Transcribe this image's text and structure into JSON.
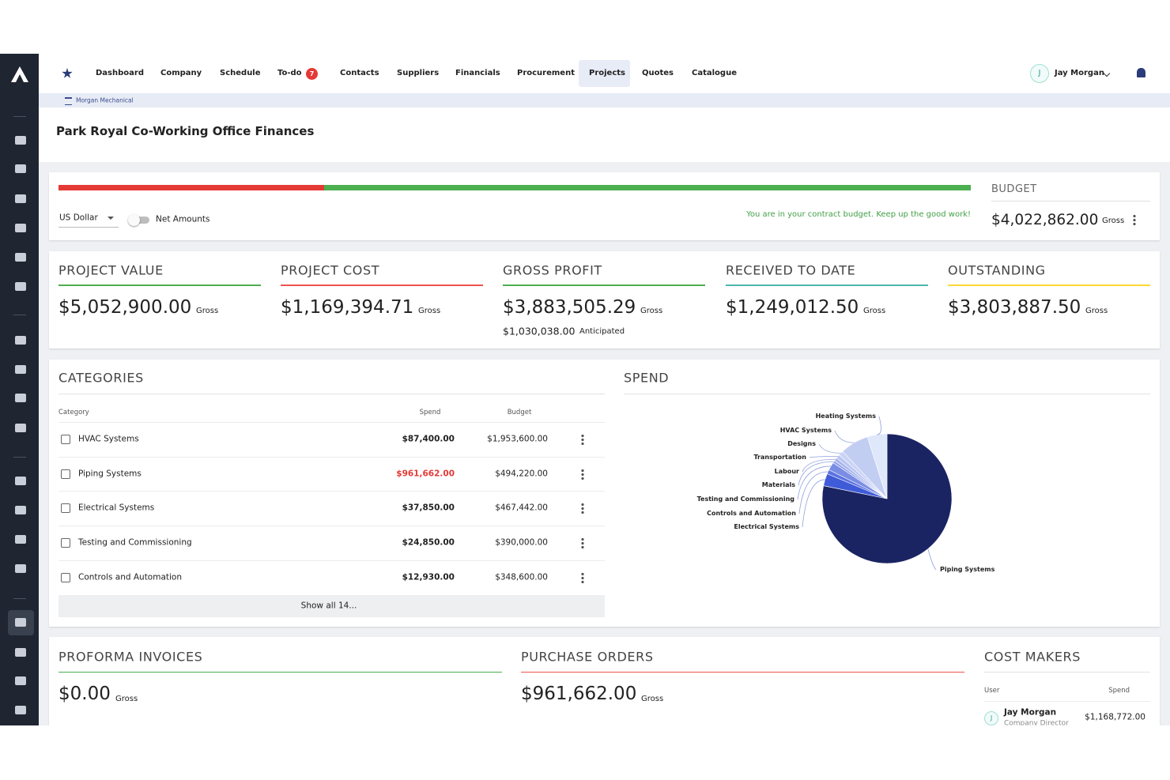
{
  "nav": {
    "items": [
      "Dashboard",
      "Company",
      "Schedule",
      "To-do",
      "Contacts",
      "Suppliers",
      "Financials",
      "Procurement",
      "Projects",
      "Quotes",
      "Catalogue"
    ],
    "todo_badge": "7",
    "active": "Projects",
    "user_initial": "J",
    "user_name": "Jay Morgan"
  },
  "breadcrumb": "Morgan Mechanical",
  "page_title": "Park Royal Co-Working Office Finances",
  "budget": {
    "currency": "US Dollar",
    "toggle_label": "Net Amounts",
    "message": "You are in your contract budget. Keep up the good work!",
    "label": "BUDGET",
    "value": "$4,022,862.00",
    "suffix": "Gross"
  },
  "summary": [
    {
      "title": "PROJECT VALUE",
      "value": "$5,052,900.00",
      "suffix": "Gross",
      "color": "#4caf50"
    },
    {
      "title": "PROJECT COST",
      "value": "$1,169,394.71",
      "suffix": "Gross",
      "color": "#ef5350"
    },
    {
      "title": "GROSS PROFIT",
      "value": "$3,883,505.29",
      "suffix": "Gross",
      "color": "#4caf50",
      "sub_value": "$1,030,038.00",
      "sub_suffix": "Anticipated"
    },
    {
      "title": "RECEIVED TO DATE",
      "value": "$1,249,012.50",
      "suffix": "Gross",
      "color": "#4db6ac"
    },
    {
      "title": "OUTSTANDING",
      "value": "$3,803,887.50",
      "suffix": "Gross",
      "color": "#fdd835"
    }
  ],
  "categories": {
    "title": "CATEGORIES",
    "headers": [
      "Category",
      "Spend",
      "Budget"
    ],
    "rows": [
      [
        "HVAC Systems",
        "$87,400.00",
        "$1,953,600.00"
      ],
      [
        "Piping Systems",
        "$961,662.00",
        "$494,220.00"
      ],
      [
        "Electrical Systems",
        "$37,850.00",
        "$467,442.00"
      ],
      [
        "Testing and Commissioning",
        "$24,850.00",
        "$390,000.00"
      ],
      [
        "Controls and Automation",
        "$12,930.00",
        "$348,600.00"
      ]
    ],
    "over_budget_row": 1,
    "show_all": "Show all 14..."
  },
  "spend": {
    "title": "SPEND",
    "chart": {
      "type": "pie",
      "categories": [
        "Piping Systems",
        "Electrical Systems",
        "Controls and Automation",
        "Testing and Commissioning",
        "Materials",
        "Labour",
        "Transportation",
        "Designs",
        "HVAC Systems",
        "Heating Systems"
      ],
      "values": [
        961662,
        37850,
        12930,
        24850,
        8000,
        10000,
        12000,
        15000,
        87400,
        60000
      ],
      "colors": [
        "#1b2462",
        "#3f5bd8",
        "#5d74df",
        "#7a8de4",
        "#93a3e9",
        "#a8b5ed",
        "#bac5f1",
        "#c9d3f5",
        "#c2cdf2",
        "#dfe7fa"
      ]
    }
  },
  "proforma": {
    "title": "PROFORMA INVOICES",
    "value": "$0.00",
    "suffix": "Gross",
    "color": "#4caf50"
  },
  "purchase_orders": {
    "title": "PURCHASE ORDERS",
    "value": "$961,662.00",
    "suffix": "Gross",
    "color": "#ef5350"
  },
  "cost_makers": {
    "title": "COST MAKERS",
    "headers": [
      "User",
      "Spend"
    ],
    "rows": [
      {
        "initial": "J",
        "name": "Jay Morgan",
        "role": "Company Director",
        "spend": "$1,168,772.00"
      }
    ]
  }
}
